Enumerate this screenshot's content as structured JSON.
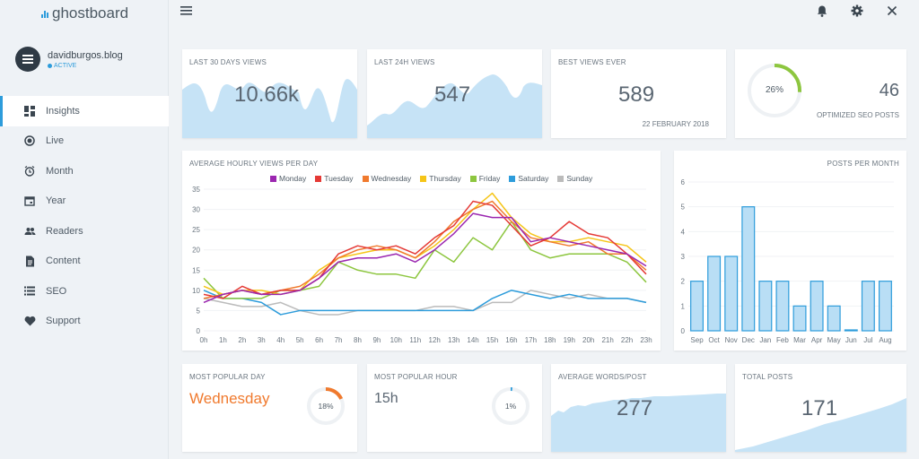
{
  "app": {
    "name": "ghostboard"
  },
  "profile": {
    "name": "davidburgos.blog",
    "status": "ACTIVE"
  },
  "nav": [
    {
      "label": "Insights",
      "icon": "grid-icon"
    },
    {
      "label": "Live",
      "icon": "record-icon"
    },
    {
      "label": "Month",
      "icon": "clock-icon"
    },
    {
      "label": "Year",
      "icon": "calendar-icon"
    },
    {
      "label": "Readers",
      "icon": "people-icon"
    },
    {
      "label": "Content",
      "icon": "document-icon"
    },
    {
      "label": "SEO",
      "icon": "list-icon"
    },
    {
      "label": "Support",
      "icon": "heart-icon"
    }
  ],
  "active_nav": "Insights",
  "topbar": {
    "icons": [
      "menu-icon",
      "bell-icon",
      "gear-icon",
      "close-icon"
    ]
  },
  "cards": {
    "views30": {
      "title": "LAST 30 DAYS VIEWS",
      "value": "10.66k"
    },
    "views24": {
      "title": "LAST 24H VIEWS",
      "value": "547"
    },
    "best": {
      "title": "BEST VIEWS EVER",
      "value": "589",
      "date": "22 FEBRUARY 2018"
    },
    "seo": {
      "percent_label": "26%",
      "percent": 26,
      "value": "46",
      "label": "OPTIMIZED SEO POSTS"
    },
    "popular_day": {
      "title": "MOST POPULAR DAY",
      "value": "Wednesday",
      "percent_label": "18%",
      "percent": 18
    },
    "popular_hour": {
      "title": "MOST POPULAR HOUR",
      "value": "15h",
      "percent_label": "1%",
      "percent": 1
    },
    "avg_words": {
      "title": "AVERAGE WORDS/POST",
      "value": "277"
    },
    "total_posts": {
      "title": "TOTAL POSTS",
      "value": "171"
    }
  },
  "colors": {
    "accent": "#2d9cdb",
    "area": "#c6e3f6",
    "seo_ring": "#8dc63f",
    "day_ring": "#f07a2e",
    "hour_ring": "#2d9cdb"
  },
  "chart_data": [
    {
      "type": "line",
      "title": "AVERAGE HOURLY VIEWS PER DAY",
      "categories": [
        "0h",
        "1h",
        "2h",
        "3h",
        "4h",
        "5h",
        "6h",
        "7h",
        "8h",
        "9h",
        "10h",
        "11h",
        "12h",
        "13h",
        "14h",
        "15h",
        "16h",
        "17h",
        "18h",
        "19h",
        "20h",
        "21h",
        "22h",
        "23h"
      ],
      "ylim": [
        0,
        35
      ],
      "yticks": [
        0,
        5,
        10,
        15,
        20,
        25,
        30,
        35
      ],
      "series": [
        {
          "name": "Monday",
          "color": "#9b27b0",
          "values": [
            7,
            9,
            10,
            9,
            9,
            10,
            13,
            17,
            18,
            18,
            19,
            17,
            20,
            24,
            29,
            28,
            28,
            22,
            23,
            22,
            21,
            20,
            19,
            16
          ]
        },
        {
          "name": "Tuesday",
          "color": "#e53935",
          "values": [
            9,
            8,
            11,
            9,
            10,
            10,
            13,
            19,
            21,
            20,
            21,
            19,
            23,
            26,
            32,
            31,
            26,
            21,
            23,
            27,
            24,
            23,
            19,
            14
          ]
        },
        {
          "name": "Wednesday",
          "color": "#f07a2e",
          "values": [
            8,
            9,
            10,
            9,
            10,
            11,
            14,
            18,
            20,
            21,
            20,
            18,
            22,
            27,
            30,
            32,
            27,
            23,
            22,
            21,
            22,
            19,
            19,
            15
          ]
        },
        {
          "name": "Thursday",
          "color": "#f5c518",
          "values": [
            11,
            9,
            10,
            10,
            9,
            10,
            15,
            18,
            19,
            20,
            20,
            18,
            21,
            25,
            30,
            34,
            28,
            24,
            22,
            22,
            23,
            22,
            21,
            17
          ]
        },
        {
          "name": "Friday",
          "color": "#8dc63f",
          "values": [
            13,
            8,
            8,
            8,
            10,
            10,
            11,
            17,
            15,
            14,
            14,
            13,
            20,
            17,
            23,
            20,
            27,
            20,
            18,
            19,
            19,
            19,
            17,
            12
          ]
        },
        {
          "name": "Saturday",
          "color": "#2d9cdb",
          "values": [
            10,
            8,
            8,
            7,
            4,
            5,
            5,
            5,
            5,
            5,
            5,
            5,
            5,
            5,
            5,
            8,
            10,
            9,
            8,
            9,
            8,
            8,
            8,
            7
          ]
        },
        {
          "name": "Sunday",
          "color": "#bbbbbb",
          "values": [
            8,
            7,
            6,
            6,
            7,
            5,
            4,
            4,
            5,
            5,
            5,
            5,
            6,
            6,
            5,
            7,
            7,
            10,
            9,
            8,
            9,
            8,
            8,
            7
          ]
        }
      ]
    },
    {
      "type": "bar",
      "title": "POSTS PER MONTH",
      "categories": [
        "Sep",
        "Oct",
        "Nov",
        "Dec",
        "Jan",
        "Feb",
        "Mar",
        "Apr",
        "May",
        "Jun",
        "Jul",
        "Aug"
      ],
      "values": [
        2,
        3,
        3,
        5,
        2,
        2,
        1,
        2,
        1,
        0,
        2,
        2
      ],
      "ylim": [
        0,
        6
      ],
      "yticks": [
        0,
        1,
        2,
        3,
        4,
        5,
        6
      ]
    }
  ]
}
